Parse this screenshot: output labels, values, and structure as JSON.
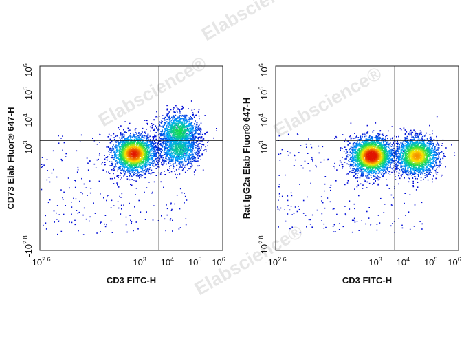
{
  "watermark": "Elabscience",
  "watermark_mark": "®",
  "chart_data": [
    {
      "type": "scatter",
      "style": "density-pseudocolor",
      "xlabel": "CD3 FITC-H",
      "ylabel": "CD73 Elab Fluor® 647-H",
      "x_scale": "biexponential",
      "y_scale": "biexponential",
      "xlim": [
        -400,
        1000000
      ],
      "ylim": [
        -630,
        1000000
      ],
      "x_ticks": [
        {
          "prefix": "-10",
          "exp": "2.6"
        },
        {
          "prefix": "10",
          "exp": "3"
        },
        {
          "prefix": "10",
          "exp": "4"
        },
        {
          "prefix": "10",
          "exp": "5"
        },
        {
          "prefix": "10",
          "exp": "6"
        }
      ],
      "y_ticks": [
        {
          "prefix": "-10",
          "exp": "2.8"
        },
        {
          "prefix": "10",
          "exp": "3"
        },
        {
          "prefix": "10",
          "exp": "4"
        },
        {
          "prefix": "10",
          "exp": "5"
        },
        {
          "prefix": "10",
          "exp": "6"
        }
      ],
      "gate": {
        "x": 5000,
        "y": 1800
      },
      "populations": [
        {
          "cx": 600,
          "cy": 600,
          "count": 2400
        },
        {
          "cx": 25000,
          "cy": 4000,
          "count": 1200
        },
        {
          "cx": 25000,
          "cy": 900,
          "count": 1000
        }
      ],
      "grid": false,
      "legend": "none"
    },
    {
      "type": "scatter",
      "style": "density-pseudocolor",
      "xlabel": "CD3 FITC-H",
      "ylabel": "Rat IgG2a Elab Fluor® 647-H",
      "x_scale": "biexponential",
      "y_scale": "biexponential",
      "xlim": [
        -400,
        1000000
      ],
      "ylim": [
        -630,
        1000000
      ],
      "x_ticks": [
        {
          "prefix": "-10",
          "exp": "2.6"
        },
        {
          "prefix": "10",
          "exp": "3"
        },
        {
          "prefix": "10",
          "exp": "4"
        },
        {
          "prefix": "10",
          "exp": "5"
        },
        {
          "prefix": "10",
          "exp": "6"
        }
      ],
      "y_ticks": [
        {
          "prefix": "-10",
          "exp": "2.8"
        },
        {
          "prefix": "10",
          "exp": "3"
        },
        {
          "prefix": "10",
          "exp": "4"
        },
        {
          "prefix": "10",
          "exp": "5"
        },
        {
          "prefix": "10",
          "exp": "6"
        }
      ],
      "gate": {
        "x": 5000,
        "y": 1800
      },
      "populations": [
        {
          "cx": 700,
          "cy": 500,
          "count": 2600
        },
        {
          "cx": 30000,
          "cy": 500,
          "count": 2000
        }
      ],
      "grid": false,
      "legend": "none"
    }
  ]
}
